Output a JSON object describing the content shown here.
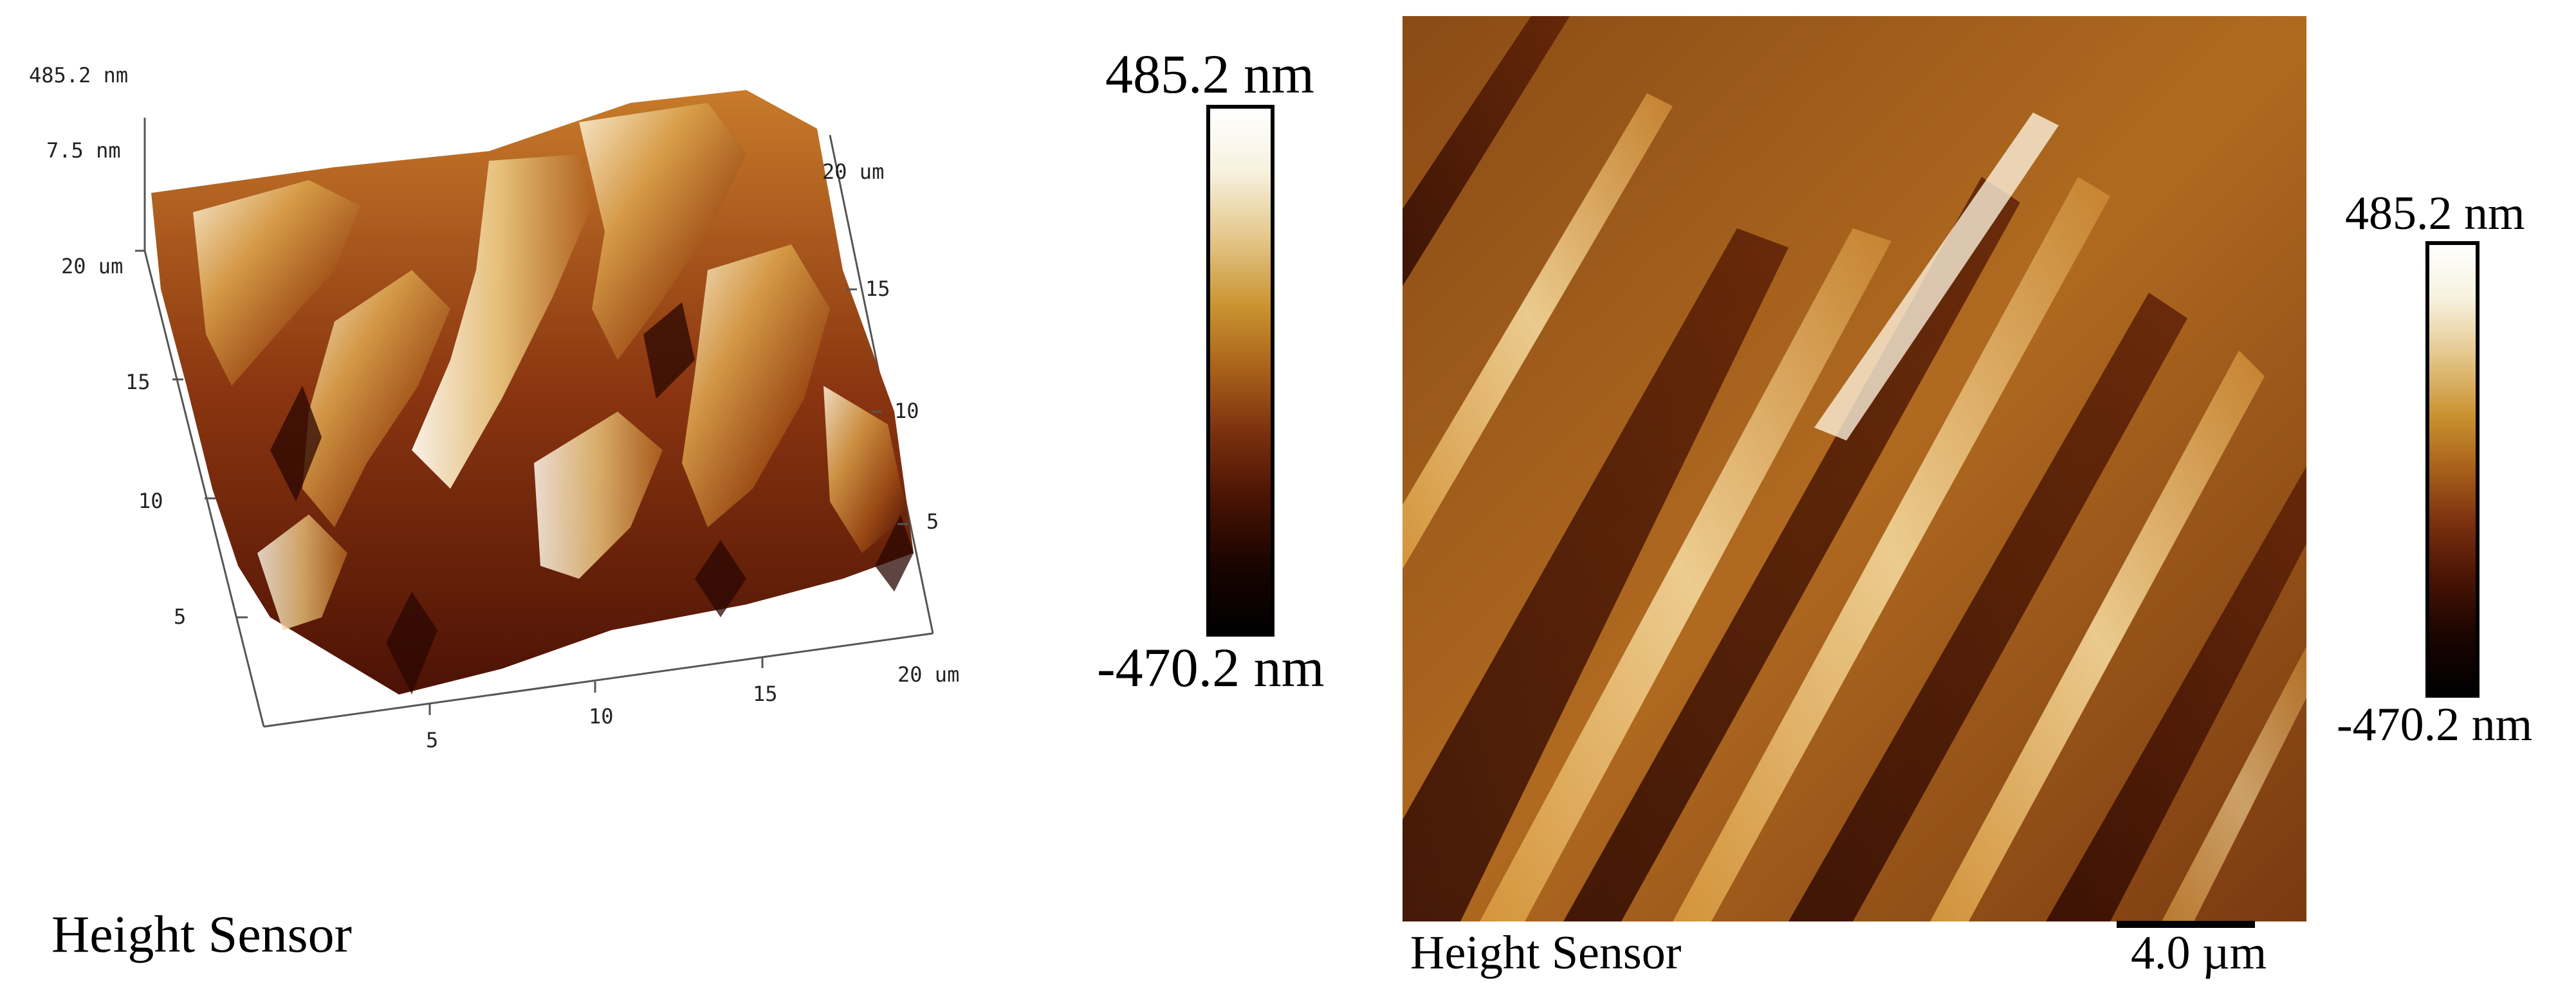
{
  "left_panel": {
    "z_max_label": "485.2 nm",
    "z_axis_label": "7.5 nm",
    "y_axis_ticks": [
      "20 um",
      "15",
      "10",
      "5"
    ],
    "x_axis_ticks": [
      "5",
      "10",
      "15",
      "20 um"
    ],
    "right_axis_ticks": [
      "20 um",
      "15",
      "10",
      "5"
    ],
    "caption": "Height Sensor"
  },
  "middle_scale": {
    "max_label": "485.2 nm",
    "min_label": "-470.2 nm"
  },
  "right_panel": {
    "caption": "Height Sensor",
    "scale_bar_label": "4.0 µm",
    "max_label": "485.2 nm",
    "min_label": "-470.2 nm"
  },
  "colormap": [
    "#ffffff",
    "#f7f1de",
    "#e5c98f",
    "#c9922f",
    "#a8601a",
    "#7a300e",
    "#4a1404",
    "#1a0400",
    "#000000"
  ]
}
